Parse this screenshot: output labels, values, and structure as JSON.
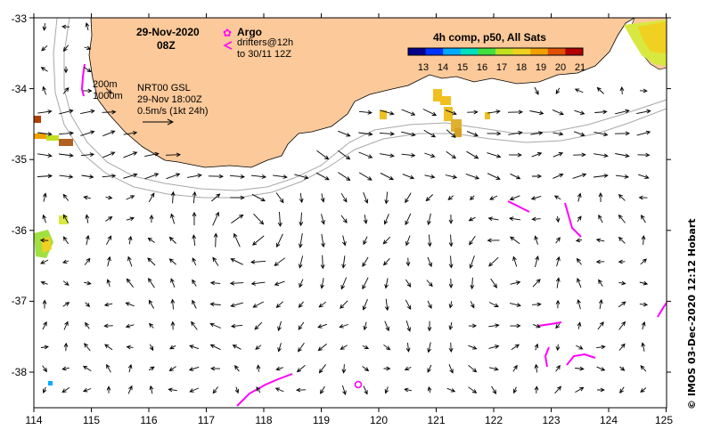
{
  "map": {
    "date": "29-Nov-2020",
    "time": "08Z",
    "legend_argo": "Argo",
    "legend_drifters": "drifters@12h",
    "legend_drifters_to": "to 30/11 12Z",
    "contour_200": "200m",
    "contour_1000": "1000m",
    "current_product": "NRT00 GSL",
    "current_time": "29-Nov 18:00Z",
    "scale_label": "0.5m/s (1kt 24h)",
    "sst_title": "4h comp, p50, All Sats",
    "colorbar_ticks": [
      "13",
      "14",
      "15",
      "16",
      "17",
      "18",
      "19",
      "20",
      "21"
    ],
    "colorbar_colors": [
      "#00008c",
      "#0033ff",
      "#00aaff",
      "#00e0c0",
      "#40e040",
      "#c0e020",
      "#f0d020",
      "#f0a000",
      "#e05000",
      "#b00000"
    ],
    "lon_ticks": [
      "114",
      "115",
      "116",
      "117",
      "118",
      "119",
      "120",
      "121",
      "122",
      "123",
      "124",
      "125"
    ],
    "lat_ticks": [
      "-33",
      "-34",
      "-35",
      "-36",
      "-37",
      "-38"
    ],
    "credit": "© IMOS 03-Dec-2020 12:12 Hobart",
    "colors": {
      "land": "#fbc99a",
      "drifter": "#ff00ff",
      "isobath": "#a8a8a8",
      "arrow": "#000000"
    }
  }
}
